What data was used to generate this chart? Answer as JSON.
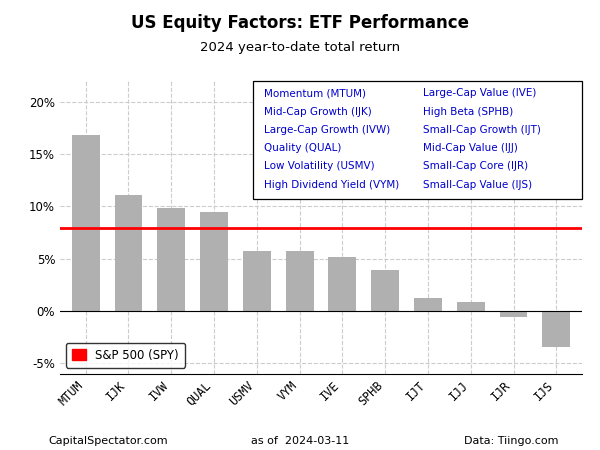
{
  "title": "US Equity Factors: ETF Performance",
  "subtitle": "2024 year-to-date total return",
  "categories": [
    "MTUM",
    "IJK",
    "IVW",
    "QUAL",
    "USMV",
    "VYM",
    "IVE",
    "SPHB",
    "IJT",
    "IJJ",
    "IJR",
    "IJS"
  ],
  "values": [
    16.8,
    11.1,
    9.8,
    9.5,
    5.75,
    5.7,
    5.2,
    3.9,
    1.2,
    0.85,
    -0.55,
    -3.5
  ],
  "bar_color": "#b0b0b0",
  "spy_line": 7.9,
  "spy_color": "#ff0000",
  "ylim": [
    -6,
    22
  ],
  "yticks": [
    -5,
    0,
    5,
    10,
    15,
    20
  ],
  "footer_left": "CapitalSpectator.com",
  "footer_center": "as of  2024-03-11",
  "footer_right": "Data: Tiingo.com",
  "legend_col1": [
    "Momentum (MTUM)",
    "Mid-Cap Growth (IJK)",
    "Large-Cap Growth (IVW)",
    "Quality (QUAL)",
    "Low Volatility (USMV)",
    "High Dividend Yield (VYM)"
  ],
  "legend_col2": [
    "Large-Cap Value (IVE)",
    "High Beta (SPHB)",
    "Small-Cap Growth (IJT)",
    "Mid-Cap Value (IJJ)",
    "Small-Cap Core (IJR)",
    "Small-Cap Value (IJS)"
  ],
  "legend_text_color": "#0000cc",
  "background_color": "#ffffff",
  "grid_color": "#cccccc",
  "title_fontsize": 12,
  "subtitle_fontsize": 9.5,
  "tick_fontsize": 8.5,
  "legend_fontsize": 7.5,
  "footer_fontsize": 8.0
}
